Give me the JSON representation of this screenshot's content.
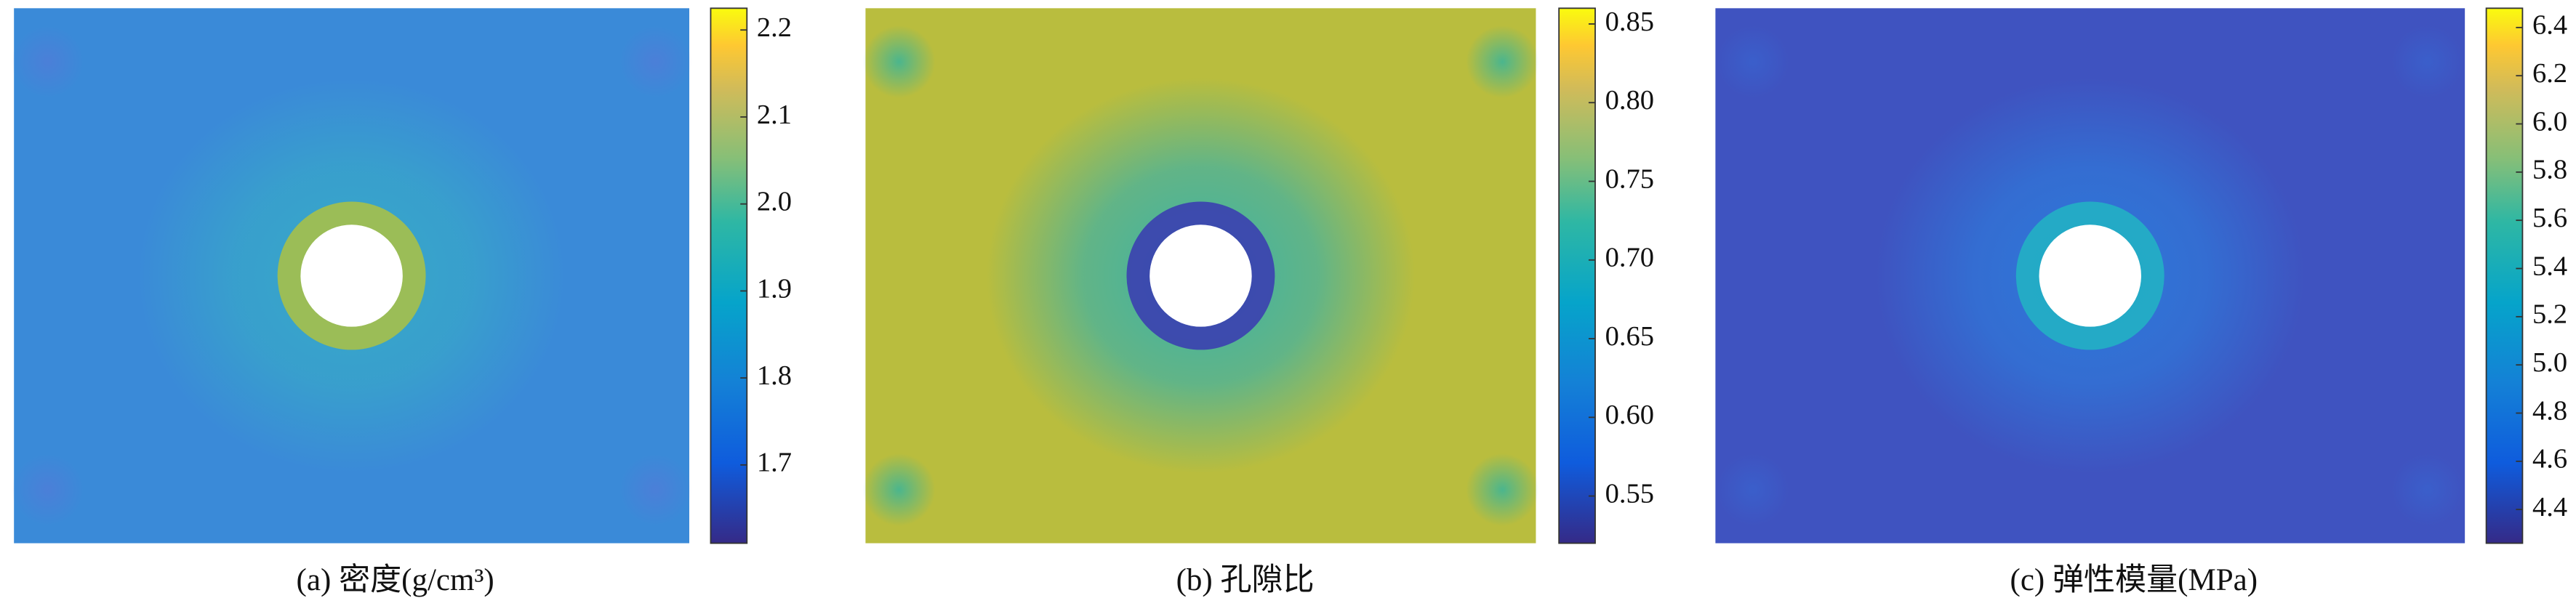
{
  "chart_data": [
    {
      "type": "heatmap",
      "caption": "(a) 密度(g/cm³)",
      "clim": [
        1.61,
        2.225
      ],
      "cticks": [
        1.7,
        1.8,
        1.9,
        {
          "value": 2,
          "label": "2.0"
        },
        2.1,
        2.2
      ]
    },
    {
      "type": "heatmap",
      "caption": "(b) 孔隙比",
      "clim": [
        0.52,
        0.86
      ],
      "cticks": [
        0.55,
        {
          "value": 0.6,
          "label": "0.60"
        },
        0.65,
        {
          "value": 0.7,
          "label": "0.70"
        },
        0.75,
        {
          "value": 0.8,
          "label": "0.80"
        },
        0.85
      ]
    },
    {
      "type": "heatmap",
      "caption": "(c) 弹性模量(MPa)",
      "clim": [
        4.26,
        6.48
      ],
      "cticks": [
        4.4,
        4.6,
        4.8,
        {
          "value": 5,
          "label": "5.0"
        },
        5.2,
        5.4,
        5.6,
        5.8,
        {
          "value": 6,
          "label": "6.0"
        },
        6.2,
        6.4
      ]
    }
  ]
}
